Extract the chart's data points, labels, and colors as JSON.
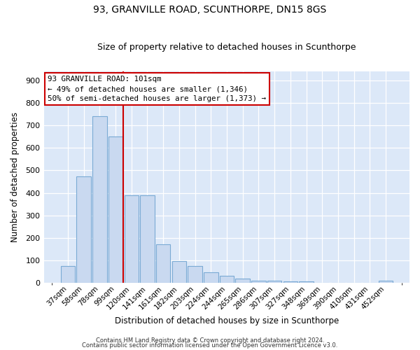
{
  "title": "93, GRANVILLE ROAD, SCUNTHORPE, DN15 8GS",
  "subtitle": "Size of property relative to detached houses in Scunthorpe",
  "xlabel": "Distribution of detached houses by size in Scunthorpe",
  "ylabel": "Number of detached properties",
  "bar_labels": [
    "37sqm",
    "58sqm",
    "78sqm",
    "99sqm",
    "120sqm",
    "141sqm",
    "161sqm",
    "182sqm",
    "203sqm",
    "224sqm",
    "244sqm",
    "265sqm",
    "286sqm",
    "307sqm",
    "327sqm",
    "348sqm",
    "369sqm",
    "390sqm",
    "410sqm",
    "431sqm",
    "452sqm"
  ],
  "bar_values": [
    75,
    472,
    740,
    650,
    390,
    390,
    170,
    97,
    75,
    47,
    32,
    18,
    10,
    10,
    7,
    5,
    0,
    0,
    0,
    0,
    8
  ],
  "bar_color": "#c9d9f0",
  "bar_edge_color": "#7aaad4",
  "vline_index": 3,
  "vline_color": "#cc0000",
  "ylim": [
    0,
    940
  ],
  "yticks": [
    0,
    100,
    200,
    300,
    400,
    500,
    600,
    700,
    800,
    900
  ],
  "annotation_title": "93 GRANVILLE ROAD: 101sqm",
  "annotation_line1": "← 49% of detached houses are smaller (1,346)",
  "annotation_line2": "50% of semi-detached houses are larger (1,373) →",
  "annotation_box_color": "#ffffff",
  "annotation_box_edgecolor": "#cc0000",
  "footer1": "Contains HM Land Registry data © Crown copyright and database right 2024.",
  "footer2": "Contains public sector information licensed under the Open Government Licence v3.0.",
  "background_color": "#dce8f8",
  "fig_background": "#ffffff",
  "grid_color": "#ffffff"
}
